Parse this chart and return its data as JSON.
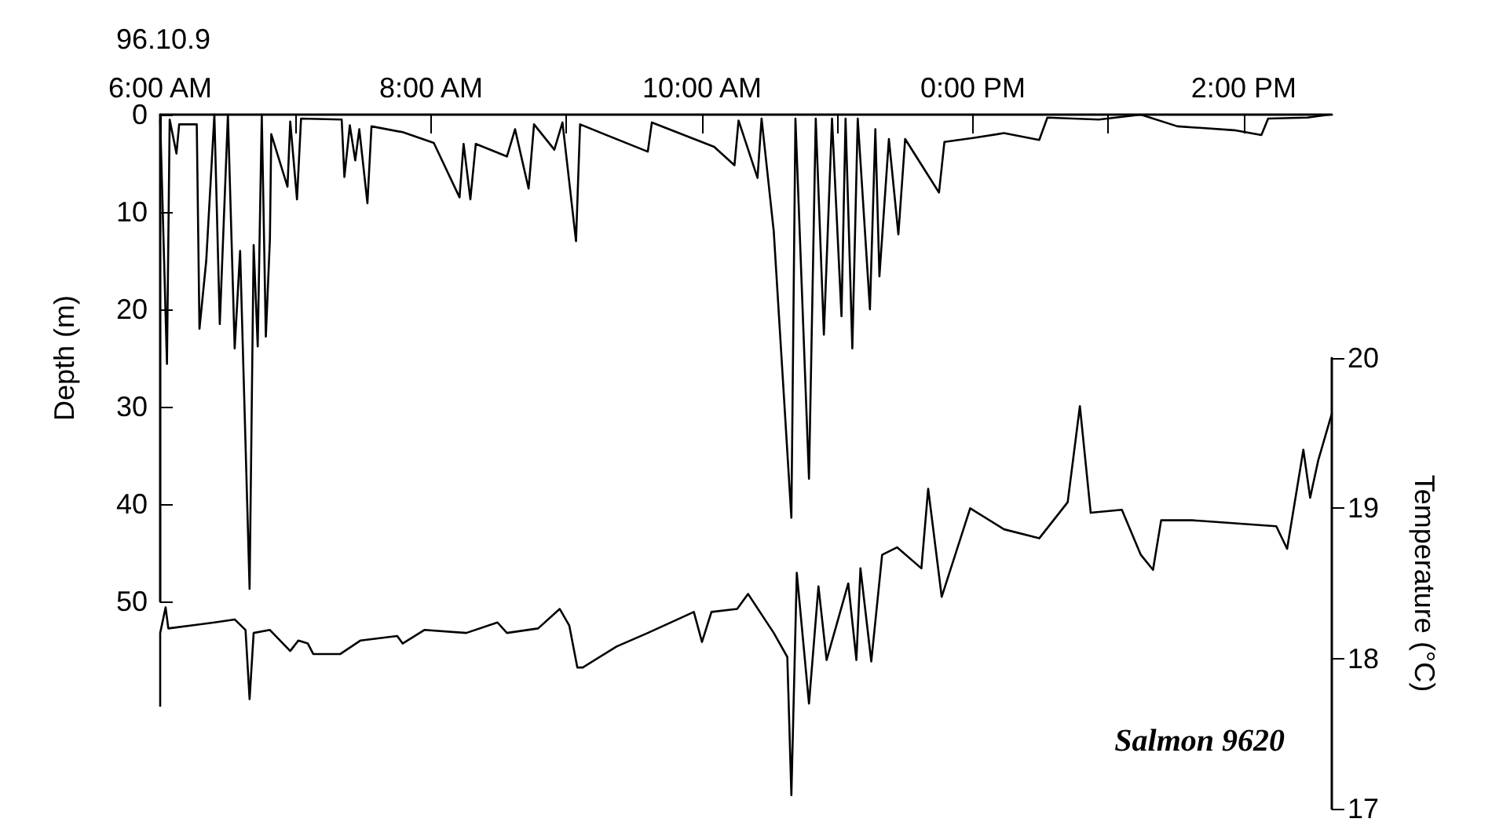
{
  "chart_data": {
    "type": "line",
    "ylabel": "Depth (m)",
    "y2label": "Temperature (°C)",
    "annotations": [
      "96.10.9",
      "Salmon 9620"
    ],
    "xlim": [
      6,
      14.65
    ],
    "xticks": [
      {
        "value": 6,
        "label": "6:00 AM"
      },
      {
        "value": 7,
        "label": null
      },
      {
        "value": 8,
        "label": "8:00 AM"
      },
      {
        "value": 9,
        "label": null
      },
      {
        "value": 10,
        "label": "10:00 AM"
      },
      {
        "value": 11,
        "label": null
      },
      {
        "value": 12,
        "label": "0:00 PM"
      },
      {
        "value": 13,
        "label": null
      },
      {
        "value": 14,
        "label": "2:00 PM"
      }
    ],
    "ylim": [
      50,
      0
    ],
    "yticks": [
      0,
      10,
      20,
      30,
      40,
      50
    ],
    "y2lim": [
      17,
      20
    ],
    "y2ticks": [
      17,
      18,
      19,
      20
    ],
    "grid": false,
    "marker": "none",
    "series": [
      {
        "color": "#000000",
        "x": [
          6.0,
          6.05,
          6.07,
          6.12,
          6.14,
          6.27,
          6.29,
          6.34,
          6.4,
          6.44,
          6.5,
          6.55,
          6.59,
          6.66,
          6.69,
          6.72,
          6.75,
          6.78,
          6.81,
          6.82,
          6.94,
          6.96,
          7.01,
          7.04,
          7.34,
          7.36,
          7.4,
          7.44,
          7.47,
          7.53,
          7.56,
          7.79,
          8.02,
          8.21,
          8.24,
          8.29,
          8.33,
          8.56,
          8.62,
          8.72,
          8.76,
          8.91,
          8.97,
          9.07,
          9.1,
          9.6,
          9.63,
          10.09,
          10.24,
          10.27,
          10.41,
          10.44,
          10.53,
          10.66,
          10.69,
          10.79,
          10.84,
          10.9,
          10.96,
          11.03,
          11.06,
          11.11,
          11.15,
          11.24,
          11.28,
          11.31,
          11.38,
          11.45,
          11.5,
          11.75,
          11.79,
          12.0,
          12.23,
          12.49,
          12.55,
          12.93,
          13.24,
          13.51,
          13.93,
          14.13,
          14.18,
          14.47,
          14.63
        ],
        "values": [
          0.5,
          25.6,
          0.5,
          4,
          1,
          1,
          22,
          15,
          0,
          21.5,
          0,
          24,
          14,
          48.7,
          13.4,
          23.8,
          0,
          22.8,
          12.8,
          2,
          7.4,
          0.7,
          8.7,
          0.4,
          0.5,
          6.4,
          1.1,
          4.7,
          1.5,
          9.1,
          1.2,
          1.8,
          2.9,
          8.5,
          3,
          8.7,
          3,
          4.3,
          1.5,
          7.6,
          1,
          3.6,
          0.8,
          13,
          1,
          3.8,
          0.8,
          3.3,
          5.2,
          0.6,
          6.5,
          0.4,
          12,
          41.4,
          0.4,
          37.4,
          0.4,
          22.6,
          0.4,
          20.7,
          0.4,
          24,
          0.4,
          20,
          1.5,
          16.6,
          2.5,
          12.3,
          2.5,
          8,
          2.8,
          2.4,
          1.9,
          2.6,
          0.3,
          0.5,
          0,
          1.2,
          1.6,
          2.1,
          0.4,
          0.3,
          0
        ]
      },
      {
        "color": "#000000",
        "axis": "y2",
        "x": [
          6.0,
          6.0,
          6.04,
          6.06,
          6.4,
          6.55,
          6.63,
          6.66,
          6.69,
          6.81,
          6.96,
          7.02,
          7.09,
          7.13,
          7.33,
          7.48,
          7.75,
          7.79,
          7.95,
          8.26,
          8.49,
          8.56,
          8.79,
          8.95,
          9.02,
          9.08,
          9.12,
          9.37,
          9.6,
          9.94,
          10.0,
          10.07,
          10.26,
          10.34,
          10.53,
          10.63,
          10.66,
          10.7,
          10.79,
          10.86,
          10.92,
          11.08,
          11.14,
          11.17,
          11.25,
          11.33,
          11.44,
          11.62,
          11.67,
          11.77,
          11.98,
          12.23,
          12.49,
          12.7,
          12.79,
          12.87,
          13.1,
          13.24,
          13.33,
          13.39,
          13.62,
          14.24,
          14.32,
          14.44,
          14.49,
          14.55,
          14.65
        ],
        "values": [
          17.68,
          18.17,
          18.34,
          18.2,
          18.24,
          18.26,
          18.19,
          17.73,
          18.17,
          18.19,
          18.05,
          18.12,
          18.1,
          18.03,
          18.03,
          18.12,
          18.15,
          18.1,
          18.19,
          18.17,
          18.24,
          18.17,
          18.2,
          18.33,
          18.22,
          17.94,
          17.94,
          18.08,
          18.17,
          18.31,
          18.11,
          18.31,
          18.33,
          18.43,
          18.17,
          18.01,
          17.09,
          18.57,
          17.7,
          18.48,
          17.99,
          18.5,
          17.99,
          18.6,
          17.98,
          18.69,
          18.74,
          18.6,
          19.13,
          18.41,
          19.0,
          18.86,
          18.8,
          19.04,
          19.68,
          18.97,
          18.99,
          18.69,
          18.59,
          18.92,
          18.92,
          18.88,
          18.73,
          19.39,
          19.07,
          19.32,
          19.63
        ]
      }
    ]
  }
}
